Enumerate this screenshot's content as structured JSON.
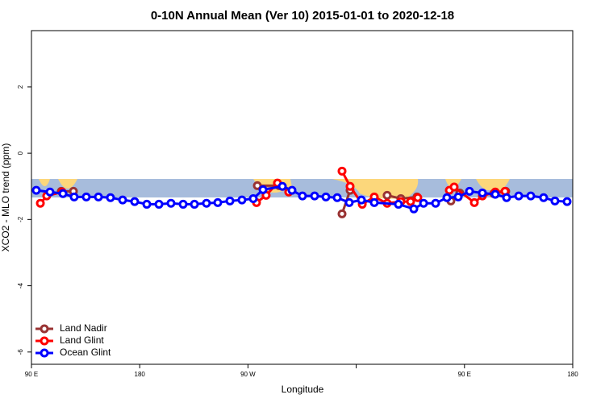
{
  "chart_data": {
    "type": "line",
    "title": "0-10N Annual Mean (Ver 10)   2015-01-01 to 2020-12-18",
    "x_label": "Longitude",
    "y_label": "XCO2 - MLO trend (ppm)",
    "xlim": [
      90,
      540
    ],
    "ylim": [
      -6.37,
      3.7
    ],
    "xticks": [
      {
        "value": 90,
        "label": "90 E"
      },
      {
        "value": 180,
        "label": "180"
      },
      {
        "value": 270,
        "label": "90 W"
      },
      {
        "value": 360,
        "label": null
      },
      {
        "value": 450,
        "label": "90 E"
      },
      {
        "value": 540,
        "label": "180"
      }
    ],
    "yticks": [
      -6,
      -4,
      -2,
      0,
      2
    ],
    "legend": "bottom-left",
    "series": [
      {
        "name": "Land Nadir",
        "color": "#993333",
        "x": [
          114.8,
          124.9,
          null,
          277.8,
          295.9,
          null,
          348.2,
          354.9,
          null,
          385.7,
          397.1,
          410.5,
          null,
          438.7,
          446.1,
          null,
          474.3,
          484.3
        ],
        "values": [
          -1.15,
          -1.15,
          null,
          -0.98,
          -0.98,
          null,
          -1.83,
          -1.12,
          null,
          -1.27,
          -1.37,
          -1.32,
          null,
          -1.44,
          -1.2,
          null,
          -1.22,
          -1.15
        ]
      },
      {
        "name": "Land Glint",
        "color": "#ff0000",
        "x": [
          97.4,
          102.7,
          115.5,
          null,
          277.1,
          285.1,
          294.5,
          303.9,
          null,
          348.2,
          354.9,
          365.0,
          375.0,
          385.7,
          397.1,
          405.2,
          411.2,
          null,
          437.4,
          441.4,
          458.2,
          464.9,
          475.6,
          483.7
        ],
        "values": [
          -1.51,
          -1.29,
          -1.17,
          null,
          -1.49,
          -1.27,
          -0.9,
          -1.17,
          null,
          -0.54,
          -1.0,
          -1.54,
          -1.32,
          -1.51,
          -1.46,
          -1.46,
          -1.34,
          null,
          -1.12,
          -1.02,
          -1.49,
          -1.29,
          -1.17,
          -1.15
        ]
      },
      {
        "name": "Ocean Glint",
        "color": "#0000ff",
        "x": [
          94.0,
          105.4,
          116.2,
          125.5,
          135.6,
          145.7,
          155.7,
          165.8,
          175.8,
          185.9,
          196.0,
          206.0,
          216.1,
          225.5,
          235.5,
          244.9,
          255.0,
          265.0,
          274.4,
          282.5,
          298.6,
          306.6,
          315.3,
          325.4,
          334.8,
          344.2,
          354.2,
          364.3,
          375.0,
          395.1,
          407.9,
          416.0,
          426.0,
          435.4,
          444.8,
          454.2,
          464.9,
          475.6,
          485.0,
          495.1,
          505.1,
          515.8,
          525.2,
          535.3
        ],
        "values": [
          -1.12,
          -1.17,
          -1.22,
          -1.32,
          -1.32,
          -1.32,
          -1.34,
          -1.41,
          -1.46,
          -1.54,
          -1.54,
          -1.51,
          -1.54,
          -1.54,
          -1.51,
          -1.49,
          -1.44,
          -1.41,
          -1.37,
          -1.1,
          -1.0,
          -1.12,
          -1.29,
          -1.29,
          -1.32,
          -1.34,
          -1.49,
          -1.41,
          -1.49,
          -1.54,
          -1.68,
          -1.51,
          -1.51,
          -1.34,
          -1.32,
          -1.15,
          -1.2,
          -1.24,
          -1.34,
          -1.29,
          -1.29,
          -1.34,
          -1.44,
          -1.46
        ]
      }
    ]
  }
}
